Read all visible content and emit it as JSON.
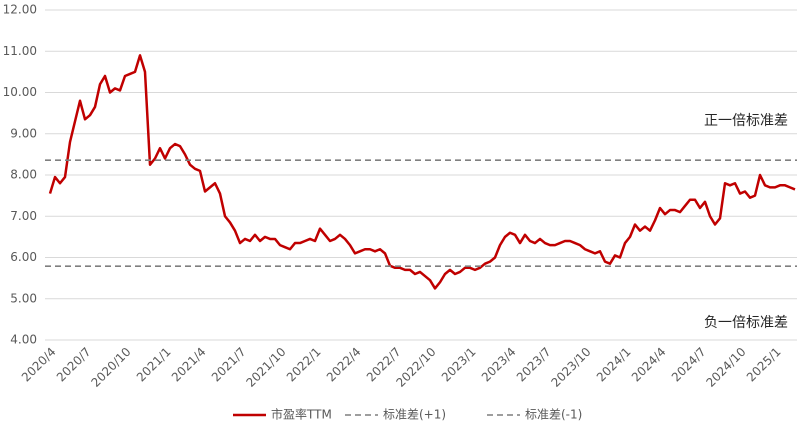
{
  "chart_data": {
    "type": "line",
    "categories": [
      "2020/4",
      null,
      null,
      null,
      null,
      null,
      null,
      "2020/7",
      null,
      null,
      null,
      null,
      null,
      null,
      null,
      "2020/10",
      null,
      null,
      null,
      null,
      null,
      null,
      null,
      "2021/1",
      null,
      null,
      null,
      null,
      null,
      null,
      "2021/4",
      null,
      null,
      null,
      null,
      null,
      null,
      null,
      "2021/7",
      null,
      null,
      null,
      null,
      null,
      null,
      null,
      "2021/10",
      null,
      null,
      null,
      null,
      null,
      null,
      "2022/1",
      null,
      null,
      null,
      null,
      null,
      null,
      null,
      "2022/4",
      null,
      null,
      null,
      null,
      null,
      null,
      null,
      "2022/7",
      null,
      null,
      null,
      null,
      null,
      null,
      "2022/10",
      null,
      null,
      null,
      null,
      null,
      null,
      null,
      "2023/1",
      null,
      null,
      null,
      null,
      null,
      null,
      null,
      "2023/4",
      null,
      null,
      null,
      null,
      null,
      null,
      "2023/7",
      null,
      null,
      null,
      null,
      null,
      null,
      null,
      "2023/10",
      null,
      null,
      null,
      null,
      null,
      null,
      null,
      "2024/1",
      null,
      null,
      null,
      null,
      null,
      null,
      "2024/4",
      null,
      null,
      null,
      null,
      null,
      null,
      null,
      "2024/7",
      null,
      null,
      null,
      null,
      null,
      null,
      null,
      "2024/10",
      null,
      null,
      null,
      null,
      null,
      null,
      "2025/1",
      null,
      null,
      null,
      null
    ],
    "series": [
      {
        "name": "市盈率TTM",
        "color": "#c00000",
        "values": [
          7.55,
          7.95,
          7.8,
          7.95,
          8.8,
          9.3,
          9.8,
          9.35,
          9.45,
          9.65,
          10.2,
          10.4,
          10.0,
          10.1,
          10.05,
          10.4,
          10.45,
          10.5,
          10.9,
          10.5,
          8.25,
          8.4,
          8.65,
          8.4,
          8.65,
          8.75,
          8.7,
          8.5,
          8.25,
          8.15,
          8.1,
          7.6,
          7.7,
          7.8,
          7.55,
          7.0,
          6.85,
          6.65,
          6.35,
          6.45,
          6.4,
          6.55,
          6.4,
          6.5,
          6.45,
          6.45,
          6.3,
          6.25,
          6.2,
          6.35,
          6.35,
          6.4,
          6.45,
          6.4,
          6.7,
          6.55,
          6.4,
          6.45,
          6.55,
          6.45,
          6.3,
          6.1,
          6.15,
          6.2,
          6.2,
          6.15,
          6.2,
          6.1,
          5.8,
          5.75,
          5.75,
          5.7,
          5.7,
          5.6,
          5.65,
          5.55,
          5.45,
          5.25,
          5.4,
          5.6,
          5.7,
          5.6,
          5.65,
          5.75,
          5.75,
          5.7,
          5.75,
          5.85,
          5.9,
          6.0,
          6.3,
          6.5,
          6.6,
          6.55,
          6.35,
          6.55,
          6.4,
          6.35,
          6.45,
          6.35,
          6.3,
          6.3,
          6.35,
          6.4,
          6.4,
          6.35,
          6.3,
          6.2,
          6.15,
          6.1,
          6.15,
          5.9,
          5.85,
          6.05,
          6.0,
          6.35,
          6.5,
          6.8,
          6.65,
          6.75,
          6.65,
          6.9,
          7.2,
          7.05,
          7.15,
          7.15,
          7.1,
          7.25,
          7.4,
          7.4,
          7.2,
          7.35,
          7.0,
          6.8,
          6.95,
          7.8,
          7.75,
          7.8,
          7.55,
          7.6,
          7.45,
          7.5,
          8.0,
          7.75,
          7.7,
          7.7,
          7.75,
          7.75,
          7.7,
          7.65
        ]
      },
      {
        "name": "标准差(+1)",
        "color": "#7f7f7f",
        "dash": true,
        "value": 8.36
      },
      {
        "name": "标准差(-1)",
        "color": "#7f7f7f",
        "dash": true,
        "value": 5.79
      }
    ],
    "annotations": [
      "正一倍标准差",
      "负一倍标准差"
    ],
    "ylim": [
      4,
      12
    ],
    "yticks": [
      {
        "value": 4,
        "label": "4.00"
      },
      {
        "value": 5,
        "label": "5.00"
      },
      {
        "value": 6,
        "label": "6.00"
      },
      {
        "value": 7,
        "label": "7.00"
      },
      {
        "value": 8,
        "label": "8.00"
      },
      {
        "value": 9,
        "label": "9.00"
      },
      {
        "value": 10,
        "label": "10.00"
      },
      {
        "value": 11,
        "label": "11.00"
      },
      {
        "value": 12,
        "label": "12.00"
      }
    ],
    "grid": true,
    "legend": "bottom"
  }
}
